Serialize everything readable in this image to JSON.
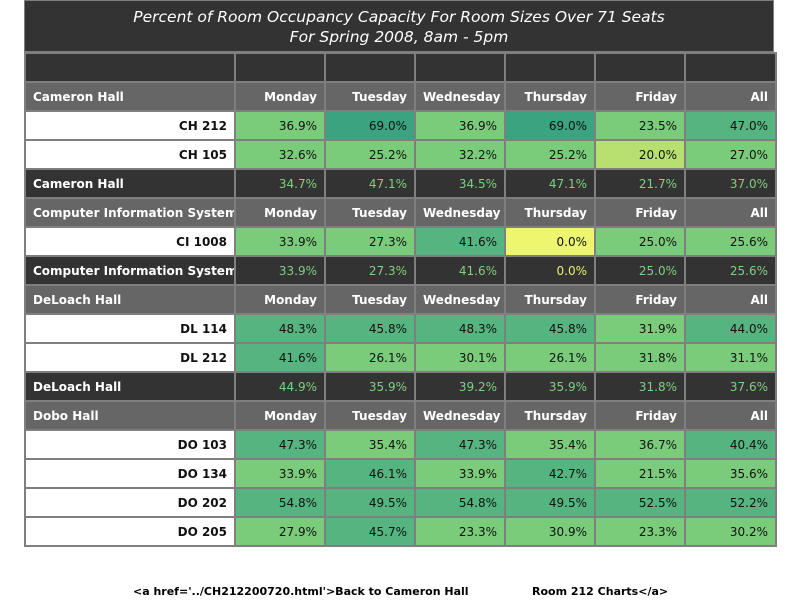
{
  "chart_data": {
    "type": "table",
    "title": "Percent of Room Occupancy Capacity For Room Sizes Over 71 Seats",
    "subtitle": "For Spring 2008, 8am - 5pm",
    "columns": [
      "Monday",
      "Tuesday",
      "Wednesday",
      "Thursday",
      "Friday",
      "All"
    ],
    "groups": [
      {
        "name": "Cameron Hall",
        "rooms": [
          {
            "name": "CH 212",
            "values": [
              "36.9%",
              "69.0%",
              "36.9%",
              "69.0%",
              "23.5%",
              "47.0%"
            ],
            "colors": [
              "#7acc7a",
              "#3ba37f",
              "#7acc7a",
              "#3ba37f",
              "#7acc7a",
              "#55b47f"
            ]
          },
          {
            "name": "CH 105",
            "values": [
              "32.6%",
              "25.2%",
              "32.2%",
              "25.2%",
              "20.0%",
              "27.0%"
            ],
            "colors": [
              "#7acc7a",
              "#7acc7a",
              "#7acc7a",
              "#7acc7a",
              "#b8e070",
              "#7acc7a"
            ]
          }
        ],
        "summary_label": "Cameron Hall",
        "summary": [
          "34.7%",
          "47.1%",
          "34.5%",
          "47.1%",
          "21.7%",
          "37.0%"
        ]
      },
      {
        "name": "Computer Information Systems",
        "rooms": [
          {
            "name": "CI 1008",
            "values": [
              "33.9%",
              "27.3%",
              "41.6%",
              "0.0%",
              "25.0%",
              "25.6%"
            ],
            "colors": [
              "#7acc7a",
              "#7acc7a",
              "#55b47f",
              "#eef56e",
              "#7acc7a",
              "#7acc7a"
            ]
          }
        ],
        "summary_label": "Computer Information Systems",
        "summary": [
          "33.9%",
          "27.3%",
          "41.6%",
          "0.0%",
          "25.0%",
          "25.6%"
        ]
      },
      {
        "name": "DeLoach Hall",
        "rooms": [
          {
            "name": "DL 114",
            "values": [
              "48.3%",
              "45.8%",
              "48.3%",
              "45.8%",
              "31.9%",
              "44.0%"
            ],
            "colors": [
              "#55b47f",
              "#55b47f",
              "#55b47f",
              "#55b47f",
              "#7acc7a",
              "#55b47f"
            ]
          },
          {
            "name": "DL 212",
            "values": [
              "41.6%",
              "26.1%",
              "30.1%",
              "26.1%",
              "31.8%",
              "31.1%"
            ],
            "colors": [
              "#55b47f",
              "#7acc7a",
              "#7acc7a",
              "#7acc7a",
              "#7acc7a",
              "#7acc7a"
            ]
          }
        ],
        "summary_label": "DeLoach Hall",
        "summary": [
          "44.9%",
          "35.9%",
          "39.2%",
          "35.9%",
          "31.8%",
          "37.6%"
        ]
      },
      {
        "name": "Dobo Hall",
        "rooms": [
          {
            "name": "DO 103",
            "values": [
              "47.3%",
              "35.4%",
              "47.3%",
              "35.4%",
              "36.7%",
              "40.4%"
            ],
            "colors": [
              "#55b47f",
              "#7acc7a",
              "#55b47f",
              "#7acc7a",
              "#7acc7a",
              "#55b47f"
            ]
          },
          {
            "name": "DO 134",
            "values": [
              "33.9%",
              "46.1%",
              "33.9%",
              "42.7%",
              "21.5%",
              "35.6%"
            ],
            "colors": [
              "#7acc7a",
              "#55b47f",
              "#7acc7a",
              "#55b47f",
              "#7acc7a",
              "#7acc7a"
            ]
          },
          {
            "name": "DO 202",
            "values": [
              "54.8%",
              "49.5%",
              "54.8%",
              "49.5%",
              "52.5%",
              "52.2%"
            ],
            "colors": [
              "#55b47f",
              "#55b47f",
              "#55b47f",
              "#55b47f",
              "#55b47f",
              "#55b47f"
            ]
          },
          {
            "name": "DO 205",
            "values": [
              "27.9%",
              "45.7%",
              "23.3%",
              "30.9%",
              "23.3%",
              "30.2%"
            ],
            "colors": [
              "#7acc7a",
              "#55b47f",
              "#7acc7a",
              "#7acc7a",
              "#7acc7a",
              "#7acc7a"
            ]
          }
        ]
      }
    ]
  },
  "footer": {
    "link_left": "<a href='../CH212200720.html'>Back to Cameron Hall",
    "link_right": "Room 212 Charts</a>"
  }
}
